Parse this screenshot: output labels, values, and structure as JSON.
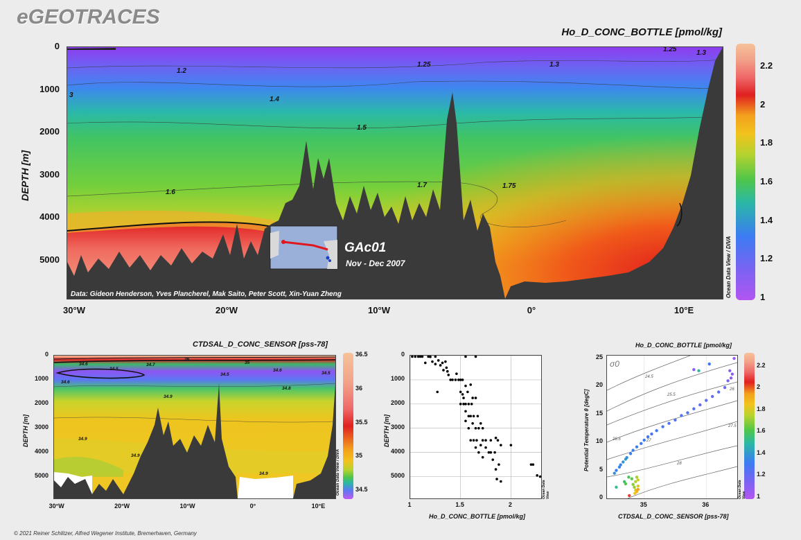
{
  "brand": "eGEOTRACES",
  "footer": "© 2021 Reiner Schlitzer, Alfred Wegener Institute, Bremerhaven, Germany",
  "cbar_credit": "Ocean Data View / DIVA",
  "cbar_credit_short": "Ocean Data View",
  "chart_data": [
    {
      "type": "heatmap",
      "id": "main-section",
      "title": "Ho_D_CONC_BOTTLE [pmol/kg]",
      "ylabel": "DEPTH [m]",
      "x_ticks": [
        "30°W",
        "20°W",
        "10°W",
        "0°",
        "10°E"
      ],
      "x_tick_values": [
        -30,
        -20,
        -10,
        0,
        10
      ],
      "xlim": [
        -30.5,
        12.5
      ],
      "y_ticks": [
        "0",
        "1000",
        "2000",
        "3000",
        "4000",
        "5000"
      ],
      "ylim": [
        0,
        5900
      ],
      "colorbar_ticks": [
        "1",
        "1.2",
        "1.4",
        "1.6",
        "1.8",
        "2",
        "2.2"
      ],
      "colorbar_range": [
        1,
        2.3
      ],
      "contour_labels": [
        "1.2",
        "1.25",
        "1.3",
        "1.3",
        "1.25",
        "1.4",
        "1.5",
        "1.6",
        "1.7",
        "1.75",
        "3"
      ],
      "section_name": "GAc01",
      "cruise_dates": "Nov - Dec 2007",
      "credits": "Data: Gideon Henderson, Yves Plancherel, Mak Saito, Peter Scott, Xin-Yuan Zheng"
    },
    {
      "type": "heatmap",
      "id": "salinity-section",
      "title": "CTDSAL_D_CONC_SENSOR [pss-78]",
      "ylabel": "DEPTH [m]",
      "x_ticks": [
        "30°W",
        "20°W",
        "10°W",
        "0°",
        "10°E"
      ],
      "x_tick_values": [
        -30,
        -20,
        -10,
        0,
        10
      ],
      "xlim": [
        -30.5,
        12.5
      ],
      "y_ticks": [
        "0",
        "1000",
        "2000",
        "3000",
        "4000",
        "5000"
      ],
      "ylim": [
        0,
        5900
      ],
      "colorbar_ticks": [
        "34.5",
        "35",
        "35.5",
        "36",
        "36.5"
      ],
      "colorbar_range": [
        34.4,
        36.5
      ],
      "contour_labels": [
        "36",
        "34.6",
        "34.7",
        "35",
        "34.5",
        "34.5",
        "34.6",
        "34.6",
        "34.8",
        "34.9",
        "34.9",
        "34.9",
        "34.9",
        "34.5"
      ]
    },
    {
      "type": "scatter",
      "id": "profile",
      "xlabel": "Ho_D_CONC_BOTTLE [pmol/kg]",
      "ylabel": "DEPTH [m]",
      "xlim": [
        1,
        2.3
      ],
      "ylim": [
        0,
        5900
      ],
      "x_ticks": [
        "1",
        "1.5",
        "2"
      ],
      "y_ticks": [
        "0",
        "1000",
        "2000",
        "3000",
        "4000",
        "5000"
      ],
      "points": [
        [
          1.02,
          0
        ],
        [
          1.05,
          0
        ],
        [
          1.08,
          0
        ],
        [
          1.1,
          0
        ],
        [
          1.12,
          0
        ],
        [
          1.18,
          0
        ],
        [
          1.2,
          50
        ],
        [
          1.25,
          0
        ],
        [
          1.55,
          0
        ],
        [
          1.65,
          0
        ],
        [
          1.15,
          300
        ],
        [
          1.22,
          250
        ],
        [
          1.28,
          200
        ],
        [
          1.32,
          300
        ],
        [
          1.35,
          250
        ],
        [
          1.25,
          350
        ],
        [
          1.3,
          400
        ],
        [
          1.36,
          500
        ],
        [
          1.33,
          600
        ],
        [
          1.37,
          650
        ],
        [
          1.42,
          1000
        ],
        [
          1.45,
          1000
        ],
        [
          1.48,
          1000
        ],
        [
          1.5,
          1000
        ],
        [
          1.52,
          1000
        ],
        [
          1.4,
          1000
        ],
        [
          1.38,
          800
        ],
        [
          1.46,
          750
        ],
        [
          1.27,
          1500
        ],
        [
          1.5,
          1500
        ],
        [
          1.52,
          1600
        ],
        [
          1.57,
          1500
        ],
        [
          1.55,
          1250
        ],
        [
          1.6,
          1200
        ],
        [
          1.5,
          2000
        ],
        [
          1.53,
          2000
        ],
        [
          1.55,
          2000
        ],
        [
          1.58,
          2000
        ],
        [
          1.61,
          2000
        ],
        [
          1.55,
          2300
        ],
        [
          1.53,
          1750
        ],
        [
          1.62,
          1750
        ],
        [
          1.65,
          1750
        ],
        [
          1.58,
          2500
        ],
        [
          1.6,
          2500
        ],
        [
          1.63,
          2500
        ],
        [
          1.67,
          2500
        ],
        [
          1.55,
          2700
        ],
        [
          1.62,
          2800
        ],
        [
          1.7,
          2800
        ],
        [
          1.58,
          3000
        ],
        [
          1.65,
          3000
        ],
        [
          1.68,
          3000
        ],
        [
          1.72,
          3000
        ],
        [
          1.6,
          3500
        ],
        [
          1.63,
          3500
        ],
        [
          1.66,
          3500
        ],
        [
          1.72,
          3500
        ],
        [
          1.75,
          3500
        ],
        [
          1.8,
          3500
        ],
        [
          1.85,
          3400
        ],
        [
          1.87,
          3500
        ],
        [
          1.65,
          3800
        ],
        [
          1.7,
          3700
        ],
        [
          1.75,
          3800
        ],
        [
          1.78,
          4000
        ],
        [
          1.8,
          4000
        ],
        [
          1.84,
          4000
        ],
        [
          1.68,
          4000
        ],
        [
          1.72,
          4200
        ],
        [
          1.82,
          4300
        ],
        [
          1.9,
          3700
        ],
        [
          1.88,
          4500
        ],
        [
          1.85,
          4700
        ],
        [
          1.86,
          5100
        ],
        [
          1.9,
          5200
        ],
        [
          2.0,
          3700
        ],
        [
          2.2,
          4500
        ],
        [
          2.22,
          4500
        ],
        [
          2.26,
          4950
        ],
        [
          2.29,
          5000
        ]
      ]
    },
    {
      "type": "scatter",
      "id": "ts-diagram",
      "title": "Ho_D_CONC_BOTTLE [pmol/kg]",
      "xlabel": "CTDSAL_D_CONC_SENSOR [pss-78]",
      "ylabel": "Potential Temperature θ [degC]",
      "xlim": [
        34.4,
        36.5
      ],
      "ylim": [
        0,
        25.5
      ],
      "x_ticks": [
        "35",
        "36"
      ],
      "x_tick_values": [
        35,
        36
      ],
      "y_ticks": [
        "0",
        "5",
        "10",
        "15",
        "20",
        "25"
      ],
      "sigma_label": "σ0",
      "isopycnal_labels": [
        "24.5",
        "25.5",
        "26",
        "26.5",
        "27",
        "27.5",
        "28"
      ],
      "colorbar_ticks": [
        "1",
        "1.2",
        "1.4",
        "1.6",
        "1.8",
        "2",
        "2.2"
      ],
      "colorbar_range": [
        1,
        2.3
      ],
      "points": [
        [
          34.52,
          4.5,
          1.35
        ],
        [
          34.55,
          5.0,
          1.3
        ],
        [
          34.6,
          5.6,
          1.32
        ],
        [
          34.62,
          6.0,
          1.33
        ],
        [
          34.66,
          6.5,
          1.35
        ],
        [
          34.7,
          7.0,
          1.38
        ],
        [
          34.72,
          7.3,
          1.34
        ],
        [
          34.78,
          8.0,
          1.3
        ],
        [
          34.82,
          8.6,
          1.32
        ],
        [
          34.88,
          9.2,
          1.3
        ],
        [
          34.95,
          9.8,
          1.28
        ],
        [
          35.0,
          10.4,
          1.3
        ],
        [
          35.06,
          11.0,
          1.29
        ],
        [
          35.12,
          11.5,
          1.25
        ],
        [
          35.2,
          12.1,
          1.28
        ],
        [
          35.3,
          12.8,
          1.26
        ],
        [
          35.4,
          13.4,
          1.25
        ],
        [
          35.5,
          14.0,
          1.24
        ],
        [
          35.6,
          14.8,
          1.25
        ],
        [
          35.7,
          15.3,
          1.24
        ],
        [
          35.8,
          16.0,
          1.23
        ],
        [
          35.9,
          16.7,
          1.22
        ],
        [
          36.0,
          17.5,
          1.22
        ],
        [
          36.1,
          18.2,
          1.2
        ],
        [
          36.2,
          19.0,
          1.22
        ],
        [
          36.3,
          19.8,
          1.2
        ],
        [
          36.35,
          21.0,
          1.15
        ],
        [
          36.4,
          21.5,
          1.1
        ],
        [
          36.42,
          22.2,
          1.1
        ],
        [
          36.38,
          22.8,
          1.12
        ],
        [
          36.45,
          25.0,
          1.05
        ],
        [
          36.05,
          24.0,
          1.3
        ],
        [
          35.8,
          23.0,
          1.12
        ],
        [
          35.88,
          22.8,
          1.45
        ],
        [
          34.55,
          2.0,
          1.5
        ],
        [
          34.68,
          3.0,
          1.55
        ],
        [
          34.7,
          2.6,
          1.6
        ],
        [
          34.75,
          3.8,
          1.58
        ],
        [
          34.8,
          3.5,
          1.62
        ],
        [
          34.82,
          2.5,
          1.68
        ],
        [
          34.84,
          2.0,
          1.7
        ],
        [
          34.86,
          3.0,
          1.75
        ],
        [
          34.88,
          3.8,
          1.72
        ],
        [
          34.9,
          3.3,
          1.78
        ],
        [
          34.9,
          2.2,
          1.8
        ],
        [
          34.86,
          1.5,
          1.82
        ],
        [
          34.85,
          0.9,
          1.85
        ],
        [
          34.88,
          1.2,
          1.88
        ],
        [
          34.9,
          1.6,
          1.95
        ],
        [
          34.76,
          0.5,
          2.1
        ]
      ]
    }
  ]
}
